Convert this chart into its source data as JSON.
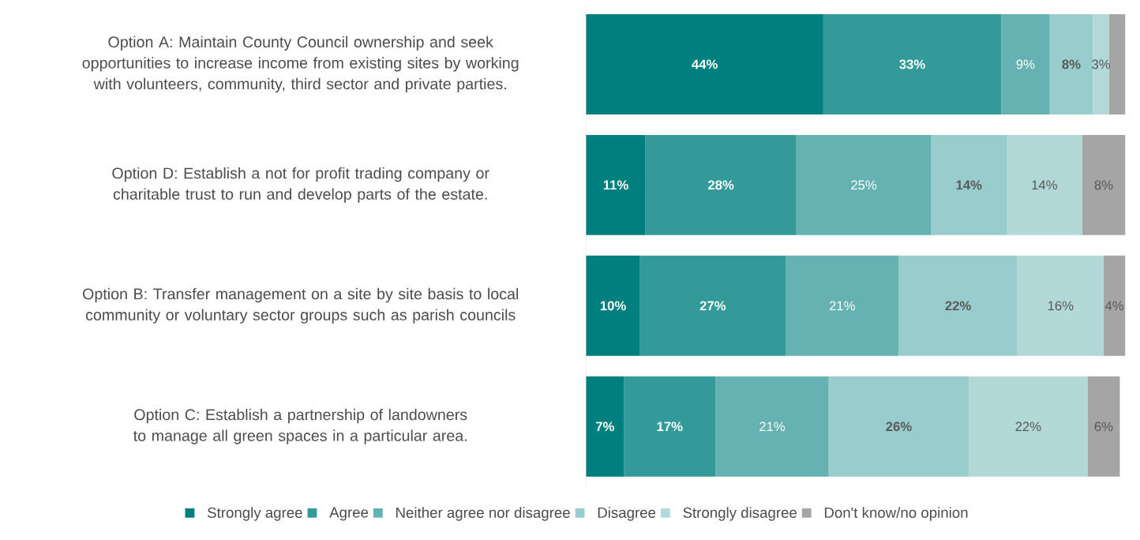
{
  "chart_data": {
    "type": "bar",
    "orientation": "horizontal",
    "stacked": true,
    "legend": "bottom",
    "tick_labels": "y",
    "categories": [
      "Option A: Maintain County Council ownership and seek opportunities to increase income from existing sites by working with volunteers, community, third sector and private parties.",
      "Option D: Establish a not for profit trading company or charitable trust to run and develop parts of the estate.",
      "Option B: Transfer management on a site by site basis to local community or voluntary sector groups such as parish councils",
      "Option C: Establish a partnership of landowners to manage all green spaces in a particular area."
    ],
    "series": [
      {
        "name": "Strongly agree",
        "color": "#007f7f",
        "values": [
          44,
          11,
          10,
          7
        ],
        "value_labels": [
          "44%",
          "11%",
          "10%",
          "7%"
        ]
      },
      {
        "name": "Agree",
        "color": "#339999",
        "values": [
          33,
          28,
          27,
          17
        ],
        "value_labels": [
          "33%",
          "28%",
          "27%",
          "17%"
        ]
      },
      {
        "name": "Neither agree nor disagree",
        "color": "#66b2b2",
        "values": [
          9,
          25,
          21,
          21
        ],
        "value_labels": [
          "9%",
          "25%",
          "21%",
          "21%"
        ]
      },
      {
        "name": "Disagree",
        "color": "#99cccc",
        "values": [
          8,
          14,
          22,
          26
        ],
        "value_labels": [
          "8%",
          "14%",
          "22%",
          "26%"
        ]
      },
      {
        "name": "Strongly disagree",
        "color": "#b2d8d8",
        "values": [
          3,
          14,
          16,
          22
        ],
        "value_labels": [
          "3%",
          "14%",
          "16%",
          "22%"
        ]
      },
      {
        "name": "Don't know/no opinion",
        "color": "#a5a5a5",
        "values": [
          3,
          8,
          4,
          6
        ],
        "value_labels": [
          null,
          "8%",
          "4%",
          "6%"
        ]
      }
    ]
  }
}
